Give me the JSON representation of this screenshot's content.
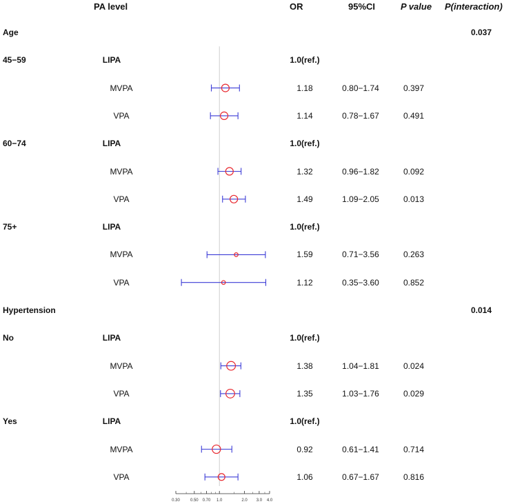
{
  "headers": {
    "pa_level": "PA level",
    "or": "OR",
    "ci": "95%CI",
    "p": "P value",
    "p_int": "P(interaction)"
  },
  "chart_data": {
    "type": "forest",
    "x_scale": "log",
    "reference_line": 1.0,
    "xlim": [
      0.3,
      4.0
    ],
    "x_ticks": [
      "0.30",
      "0.50",
      "0.70",
      "1.0",
      "2.0",
      "3.0",
      "4.0"
    ],
    "marker_color": "#e8262d",
    "ci_color": "#3b3bd6",
    "groups": [
      {
        "label": "Age",
        "p_interaction": "0.037",
        "subgroups": [
          {
            "label": "45−59",
            "rows": [
              {
                "level": "LIPA",
                "or_text": "1.0(ref.)",
                "ref": true
              },
              {
                "level": "MVPA",
                "or": 1.18,
                "lo": 0.8,
                "hi": 1.74,
                "or_text": "1.18",
                "ci_text": "0.80−1.74",
                "p": "0.397",
                "weight": 1.0
              },
              {
                "level": "VPA",
                "or": 1.14,
                "lo": 0.78,
                "hi": 1.67,
                "or_text": "1.14",
                "ci_text": "0.78−1.67",
                "p": "0.491",
                "weight": 1.0
              }
            ]
          },
          {
            "label": "60−74",
            "rows": [
              {
                "level": "LIPA",
                "or_text": "1.0(ref.)",
                "ref": true
              },
              {
                "level": "MVPA",
                "or": 1.32,
                "lo": 0.96,
                "hi": 1.82,
                "or_text": "1.32",
                "ci_text": "0.96−1.82",
                "p": "0.092",
                "weight": 1.0
              },
              {
                "level": "VPA",
                "or": 1.49,
                "lo": 1.09,
                "hi": 2.05,
                "or_text": "1.49",
                "ci_text": "1.09−2.05",
                "p": "0.013",
                "weight": 1.0
              }
            ]
          },
          {
            "label": "75+",
            "rows": [
              {
                "level": "LIPA",
                "or_text": "1.0(ref.)",
                "ref": true
              },
              {
                "level": "MVPA",
                "or": 1.59,
                "lo": 0.71,
                "hi": 3.56,
                "or_text": "1.59",
                "ci_text": "0.71−3.56",
                "p": "0.263",
                "weight": 0.5
              },
              {
                "level": "VPA",
                "or": 1.12,
                "lo": 0.35,
                "hi": 3.6,
                "or_text": "1.12",
                "ci_text": "0.35−3.60",
                "p": "0.852",
                "weight": 0.5
              }
            ]
          }
        ]
      },
      {
        "label": "Hypertension",
        "p_interaction": "0.014",
        "subgroups": [
          {
            "label": "No",
            "rows": [
              {
                "level": "LIPA",
                "or_text": "1.0(ref.)",
                "ref": true
              },
              {
                "level": "MVPA",
                "or": 1.38,
                "lo": 1.04,
                "hi": 1.81,
                "or_text": "1.38",
                "ci_text": "1.04−1.81",
                "p": "0.024",
                "weight": 1.15
              },
              {
                "level": "VPA",
                "or": 1.35,
                "lo": 1.03,
                "hi": 1.76,
                "or_text": "1.35",
                "ci_text": "1.03−1.76",
                "p": "0.029",
                "weight": 1.15
              }
            ]
          },
          {
            "label": "Yes",
            "rows": [
              {
                "level": "LIPA",
                "or_text": "1.0(ref.)",
                "ref": true
              },
              {
                "level": "MVPA",
                "or": 0.92,
                "lo": 0.61,
                "hi": 1.41,
                "or_text": "0.92",
                "ci_text": "0.61−1.41",
                "p": "0.714",
                "weight": 1.1
              },
              {
                "level": "VPA",
                "or": 1.06,
                "lo": 0.67,
                "hi": 1.67,
                "or_text": "1.06",
                "ci_text": "0.67−1.67",
                "p": "0.816",
                "weight": 0.9
              }
            ]
          }
        ]
      }
    ]
  }
}
